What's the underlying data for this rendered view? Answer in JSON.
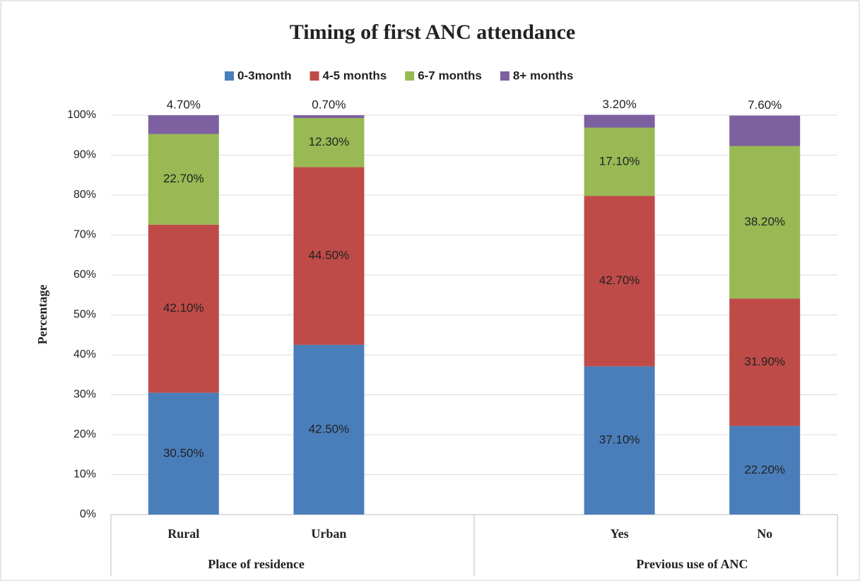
{
  "chart_data": {
    "type": "stacked_bar",
    "title": "Timing of first ANC attendance",
    "y_label": "Percentage",
    "categories": [
      "Rural",
      "Urban",
      null,
      "Yes",
      "No"
    ],
    "groups": [
      {
        "name": "Place of residence",
        "categories": [
          "Rural",
          "Urban"
        ]
      },
      {
        "name": "Previous use of ANC",
        "categories": [
          "Yes",
          "No"
        ]
      }
    ],
    "series": [
      {
        "name": "0-3month",
        "color": "#4a7ebb",
        "values": [
          30.5,
          42.5,
          null,
          37.1,
          22.2
        ],
        "value_labels": [
          "30.50%",
          "42.50%",
          null,
          "37.10%",
          "22.20%"
        ]
      },
      {
        "name": "4-5 months",
        "color": "#be4b48",
        "values": [
          42.1,
          44.5,
          null,
          42.7,
          31.9
        ],
        "value_labels": [
          "42.10%",
          "44.50%",
          null,
          "42.70%",
          "31.90%"
        ]
      },
      {
        "name": "6-7 months",
        "color": "#98b954",
        "values": [
          22.7,
          12.3,
          null,
          17.1,
          38.2
        ],
        "value_labels": [
          "22.70%",
          "12.30%",
          null,
          "17.10%",
          "38.20%"
        ]
      },
      {
        "name": "8+ months",
        "color": "#7d60a0",
        "values": [
          4.7,
          0.7,
          null,
          3.2,
          7.6
        ],
        "value_labels": [
          "4.70%",
          "0.70%",
          null,
          "3.20%",
          "7.60%"
        ]
      }
    ],
    "ylim": [
      0,
      100
    ],
    "yticks": [
      {
        "value": 0,
        "label": "0%"
      },
      {
        "value": 10,
        "label": "10%"
      },
      {
        "value": 20,
        "label": "20%"
      },
      {
        "value": 30,
        "label": "30%"
      },
      {
        "value": 40,
        "label": "40%"
      },
      {
        "value": 50,
        "label": "50%"
      },
      {
        "value": 60,
        "label": "60%"
      },
      {
        "value": 70,
        "label": "70%"
      },
      {
        "value": 80,
        "label": "80%"
      },
      {
        "value": 90,
        "label": "90%"
      },
      {
        "value": 100,
        "label": "100%"
      }
    ],
    "grid": true,
    "legend": "top"
  }
}
